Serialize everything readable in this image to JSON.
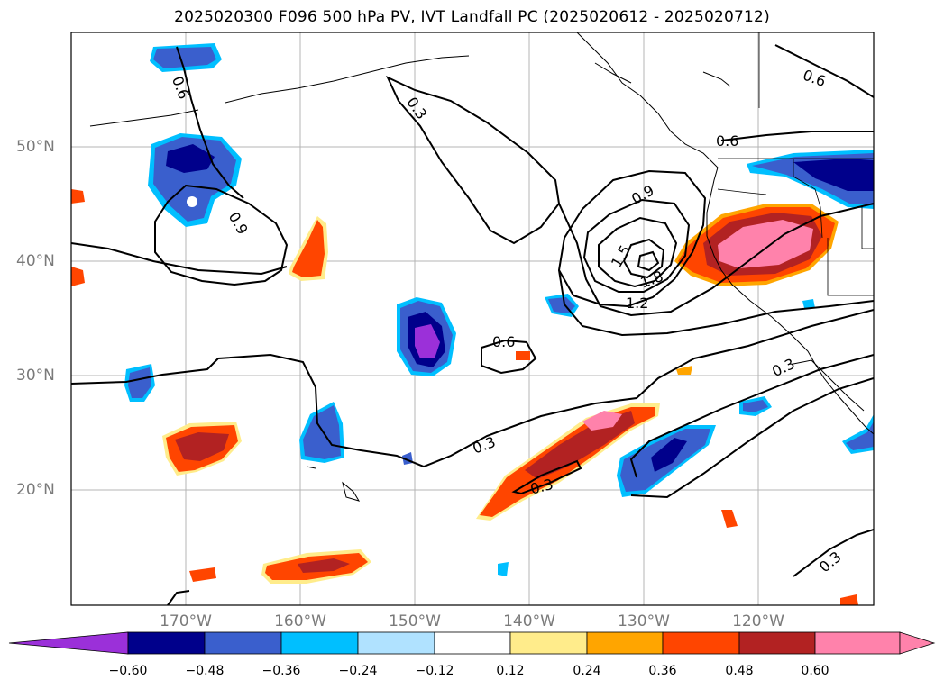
{
  "title": "2025020300 F096 500 hPa PV, IVT Landfall PC (2025020612 - 2025020712)",
  "map": {
    "projection": "lat-lon",
    "lon_range": [
      -180,
      -110
    ],
    "lat_range": [
      10,
      60
    ],
    "lat_labels": [
      "50°N",
      "40°N",
      "30°N",
      "20°N"
    ],
    "lon_labels": [
      "170°W",
      "160°W",
      "150°W",
      "140°W",
      "130°W",
      "120°W"
    ],
    "contour_labels": [
      "0.6",
      "0.3",
      "0.6",
      "0.6",
      "0.9",
      "0.9",
      "1.5",
      "1.8",
      "1.2",
      "0.6",
      "0.3",
      "0.3",
      "0.3",
      "0.3"
    ],
    "contour_label_color": "#000000",
    "fill_colors": {
      "neg_060": "#9b30d9",
      "neg_048": "#00008b",
      "neg_036": "#3a5fcd",
      "neg_024": "#00bfff",
      "neg_012": "#b0e2ff",
      "pos_012": "#ffec8b",
      "pos_024": "#ffa500",
      "pos_036": "#ff4500",
      "pos_048": "#b22222",
      "pos_060": "#ff82ab"
    }
  },
  "colorbar": {
    "ticks": [
      "−0.60",
      "−0.48",
      "−0.36",
      "−0.24",
      "−0.12",
      "0.12",
      "0.24",
      "0.36",
      "0.48",
      "0.60"
    ],
    "colors": [
      "#9b30d9",
      "#00008b",
      "#3a5fcd",
      "#00bfff",
      "#b0e2ff",
      "#ffffff",
      "#ffec8b",
      "#ffa500",
      "#ff4500",
      "#b22222",
      "#ff82ab"
    ]
  }
}
